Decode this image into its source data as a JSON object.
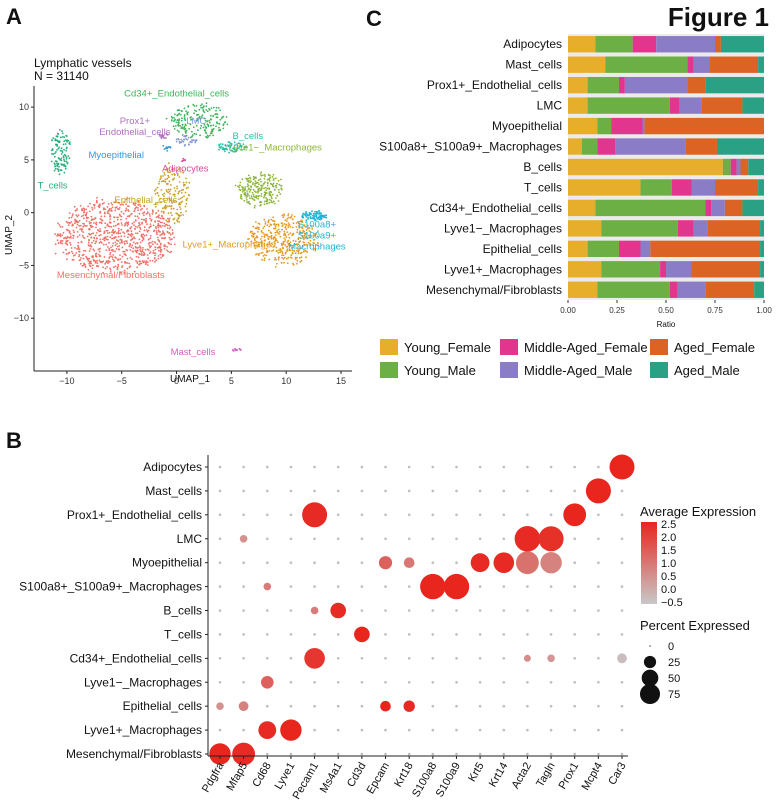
{
  "figure_title": "Figure 1",
  "chart_data": [
    {
      "type": "scatter",
      "panel": "A",
      "title": "Lymphatic vessels",
      "subtitle": "N = 31140",
      "xlabel": "UMAP_1",
      "ylabel": "UMAP_2",
      "xlim": [
        -13,
        16
      ],
      "ylim": [
        -15,
        12
      ],
      "xticks": [
        -10,
        -5,
        0,
        5,
        10,
        15
      ],
      "yticks": [
        -10,
        -5,
        0,
        5,
        10
      ],
      "clusters": [
        {
          "name": "Mesenchymal/Fibroblasts",
          "label": "Mesenchymal/Fibroblasts",
          "color": "#F07167",
          "cx": -5.5,
          "cy": -2.2,
          "rx": 5.3,
          "ry": 3.4,
          "n": 900,
          "label_x": -6.0,
          "label_y": -6.2
        },
        {
          "name": "Lyve1+_Macrophages",
          "label": "Lyve1+_Macrophages",
          "color": "#E59A1E",
          "cx": 9.8,
          "cy": -2.5,
          "rx": 3.1,
          "ry": 2.4,
          "n": 380,
          "label_x": 4.8,
          "label_y": -3.3
        },
        {
          "name": "Epithelial_cells",
          "label": "Epithelial_cells",
          "color": "#C9A227",
          "cx": -0.4,
          "cy": 1.8,
          "rx": 1.6,
          "ry": 2.8,
          "n": 170,
          "label_x": -2.8,
          "label_y": 0.9
        },
        {
          "name": "Lyve1-_Macrophages",
          "label": "Lyve1−_Macrophages",
          "color": "#8DB63C",
          "cx": 7.6,
          "cy": 2.2,
          "rx": 2.1,
          "ry": 1.6,
          "n": 230,
          "label_x": 9.0,
          "label_y": 5.9
        },
        {
          "name": "S100a8+_S100a9+_Macrophages",
          "label": "S100a8+\nS100a9+\nMacrophages",
          "color": "#1FB5D6",
          "cx": 12.5,
          "cy": -0.3,
          "rx": 1.2,
          "ry": 0.45,
          "n": 90,
          "label_x": 12.8,
          "label_y": -1.4
        },
        {
          "name": "B_cells",
          "label": "B_cells",
          "color": "#2DBFA4",
          "cx": 5.0,
          "cy": 6.2,
          "rx": 1.3,
          "ry": 0.5,
          "n": 70,
          "label_x": 6.5,
          "label_y": 7.0
        },
        {
          "name": "T_cells",
          "label": "T_cells",
          "color": "#25B07C",
          "cx": -10.6,
          "cy": 5.8,
          "rx": 0.9,
          "ry": 2.1,
          "n": 110,
          "label_x": -11.3,
          "label_y": 2.3
        },
        {
          "name": "Cd34+_Endothelial_cells",
          "label": "Cd34+_Endothelial_cells",
          "color": "#3DB55A",
          "cx": 2.0,
          "cy": 8.7,
          "rx": 2.6,
          "ry": 1.6,
          "n": 200,
          "label_x": 0.0,
          "label_y": 11.0
        },
        {
          "name": "Prox1+_Endothelial_cells",
          "label": "Prox1+\nEndothelial_cells",
          "color": "#B070C0",
          "cx": -1.2,
          "cy": 7.3,
          "rx": 0.4,
          "ry": 0.3,
          "n": 15,
          "label_x": -3.8,
          "label_y": 8.4
        },
        {
          "name": "LMC",
          "label": "LMC",
          "color": "#8899DD",
          "cx": 0.9,
          "cy": 6.8,
          "rx": 0.9,
          "ry": 0.45,
          "n": 40,
          "label_x": 1.8,
          "label_y": 8.4
        },
        {
          "name": "Myoepithelial",
          "label": "Myoepithelial",
          "color": "#2E9BD6",
          "cx": -0.9,
          "cy": 6.1,
          "rx": 0.4,
          "ry": 0.3,
          "n": 12,
          "label_x": -5.5,
          "label_y": 5.2
        },
        {
          "name": "Adipocytes",
          "label": "Adipocytes",
          "color": "#E1479A",
          "cx": 0.6,
          "cy": 4.9,
          "rx": 0.25,
          "ry": 0.2,
          "n": 6,
          "label_x": 0.8,
          "label_y": 3.9
        },
        {
          "name": "Mast_cells",
          "label": "Mast_cells",
          "color": "#D35CC0",
          "cx": 5.5,
          "cy": -13.0,
          "rx": 0.4,
          "ry": 0.12,
          "n": 10,
          "label_x": 1.5,
          "label_y": -13.5
        }
      ]
    },
    {
      "type": "bar",
      "subtype": "stacked-horizontal",
      "panel": "C",
      "xlabel": "Ratio",
      "xlim": [
        0,
        1
      ],
      "xticks": [
        "0.00",
        "0.25",
        "0.50",
        "0.75",
        "1.00"
      ],
      "categories": [
        "Adipocytes",
        "Mast_cells",
        "Prox1+_Endothelial_cells",
        "LMC",
        "Myoepithelial",
        "S100a8+_S100a9+_Macrophages",
        "B_cells",
        "T_cells",
        "Cd34+_Endothelial_cells",
        "Lyve1−_Macrophages",
        "Epithelial_cells",
        "Lyve1+_Macrophages",
        "Mesenchymal/Fibroblasts"
      ],
      "series": [
        {
          "name": "Young_Female",
          "color": "#E7AE2C",
          "values": [
            0.14,
            0.19,
            0.1,
            0.1,
            0.15,
            0.07,
            0.79,
            0.37,
            0.14,
            0.17,
            0.1,
            0.17,
            0.15
          ]
        },
        {
          "name": "Young_Male",
          "color": "#6BAF45",
          "values": [
            0.19,
            0.42,
            0.16,
            0.42,
            0.07,
            0.08,
            0.04,
            0.16,
            0.56,
            0.39,
            0.16,
            0.3,
            0.37
          ]
        },
        {
          "name": "Middle-Aged_Female",
          "color": "#E2358D",
          "values": [
            0.12,
            0.03,
            0.03,
            0.05,
            0.16,
            0.09,
            0.03,
            0.1,
            0.03,
            0.08,
            0.11,
            0.03,
            0.04
          ]
        },
        {
          "name": "Middle-Aged_Male",
          "color": "#8A7CC6",
          "values": [
            0.3,
            0.08,
            0.32,
            0.11,
            0.01,
            0.36,
            0.02,
            0.12,
            0.07,
            0.07,
            0.05,
            0.13,
            0.14
          ]
        },
        {
          "name": "Aged_Female",
          "color": "#DB6424",
          "values": [
            0.03,
            0.25,
            0.09,
            0.21,
            0.61,
            0.16,
            0.04,
            0.22,
            0.09,
            0.27,
            0.56,
            0.35,
            0.25
          ]
        },
        {
          "name": "Aged_Male",
          "color": "#2AA184",
          "values": [
            0.22,
            0.03,
            0.3,
            0.11,
            0.0,
            0.24,
            0.08,
            0.03,
            0.11,
            0.02,
            0.02,
            0.02,
            0.05
          ]
        }
      ],
      "legend_labels": [
        "Young_Female",
        "Middle-Aged_Female",
        "Aged_Female",
        "Young_Male",
        "Middle-Aged_Male",
        "Aged_Male"
      ]
    },
    {
      "type": "dot",
      "panel": "B",
      "rows": [
        "Adipocytes",
        "Mast_cells",
        "Prox1+_Endothelial_cells",
        "LMC",
        "Myoepithelial",
        "S100a8+_S100a9+_Macrophages",
        "B_cells",
        "T_cells",
        "Cd34+_Endothelial_cells",
        "Lyve1−_Macrophages",
        "Epithelial_cells",
        "Lyve1+_Macrophages",
        "Mesenchymal/Fibroblasts"
      ],
      "genes": [
        "Pdgfra",
        "Mfap5",
        "Cd68",
        "Lyve1",
        "Pecam1",
        "Ms4a1",
        "Cd3d",
        "Epcam",
        "Krt18",
        "S100a8",
        "S100a9",
        "Krt5",
        "Krt14",
        "Acta2",
        "Tagln",
        "Prox1",
        "Mcpt4",
        "Car3"
      ],
      "points": [
        {
          "row": 0,
          "gene": 17,
          "pct": 85,
          "avg": 2.5
        },
        {
          "row": 1,
          "gene": 16,
          "pct": 85,
          "avg": 2.5
        },
        {
          "row": 2,
          "gene": 15,
          "pct": 70,
          "avg": 2.5
        },
        {
          "row": 2,
          "gene": 4,
          "pct": 85,
          "avg": 2.4
        },
        {
          "row": 3,
          "gene": 13,
          "pct": 90,
          "avg": 2.4
        },
        {
          "row": 3,
          "gene": 14,
          "pct": 85,
          "avg": 2.3
        },
        {
          "row": 3,
          "gene": 1,
          "pct": 5,
          "avg": 0.5
        },
        {
          "row": 4,
          "gene": 7,
          "pct": 20,
          "avg": 1.4
        },
        {
          "row": 4,
          "gene": 8,
          "pct": 12,
          "avg": 1.0
        },
        {
          "row": 4,
          "gene": 11,
          "pct": 45,
          "avg": 2.4
        },
        {
          "row": 4,
          "gene": 12,
          "pct": 55,
          "avg": 2.4
        },
        {
          "row": 4,
          "gene": 13,
          "pct": 70,
          "avg": 1.1
        },
        {
          "row": 4,
          "gene": 14,
          "pct": 60,
          "avg": 0.8
        },
        {
          "row": 5,
          "gene": 9,
          "pct": 88,
          "avg": 2.5
        },
        {
          "row": 5,
          "gene": 10,
          "pct": 88,
          "avg": 2.5
        },
        {
          "row": 5,
          "gene": 2,
          "pct": 5,
          "avg": 0.9
        },
        {
          "row": 6,
          "gene": 5,
          "pct": 30,
          "avg": 2.4
        },
        {
          "row": 6,
          "gene": 4,
          "pct": 5,
          "avg": 0.9
        },
        {
          "row": 7,
          "gene": 6,
          "pct": 30,
          "avg": 2.5
        },
        {
          "row": 8,
          "gene": 4,
          "pct": 55,
          "avg": 2.2
        },
        {
          "row": 8,
          "gene": 17,
          "pct": 10,
          "avg": -0.3
        },
        {
          "row": 8,
          "gene": 14,
          "pct": 5,
          "avg": 0.4
        },
        {
          "row": 8,
          "gene": 13,
          "pct": 4,
          "avg": 0.6
        },
        {
          "row": 9,
          "gene": 2,
          "pct": 18,
          "avg": 1.4
        },
        {
          "row": 10,
          "gene": 7,
          "pct": 12,
          "avg": 2.5
        },
        {
          "row": 10,
          "gene": 8,
          "pct": 14,
          "avg": 2.4
        },
        {
          "row": 10,
          "gene": 1,
          "pct": 10,
          "avg": 0.8
        },
        {
          "row": 10,
          "gene": 0,
          "pct": 5,
          "avg": 0.5
        },
        {
          "row": 11,
          "gene": 2,
          "pct": 40,
          "avg": 2.4
        },
        {
          "row": 11,
          "gene": 3,
          "pct": 60,
          "avg": 2.5
        },
        {
          "row": 12,
          "gene": 0,
          "pct": 60,
          "avg": 2.5
        },
        {
          "row": 12,
          "gene": 1,
          "pct": 70,
          "avg": 2.4
        }
      ],
      "color_legend_title": "Average Expression",
      "color_ticks": [
        "2.5",
        "2.0",
        "1.5",
        "1.0",
        "0.5",
        "0.0",
        "−0.5"
      ],
      "color_range": [
        -0.5,
        2.5
      ],
      "color_low": "#C8C8C8",
      "color_high": "#E8261E",
      "size_legend_title": "Percent Expressed",
      "size_values": [
        0,
        25,
        50,
        75
      ],
      "size_labels": [
        "0",
        "25",
        "50",
        "75"
      ]
    }
  ],
  "panel_labels": {
    "a": "A",
    "b": "B",
    "c": "C"
  }
}
